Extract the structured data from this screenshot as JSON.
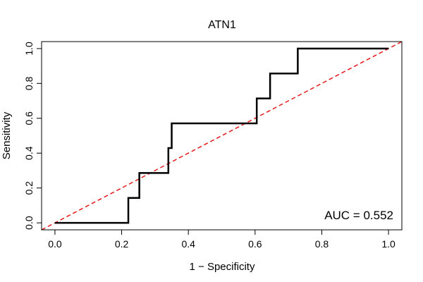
{
  "chart_data": {
    "type": "line",
    "title": "ATN1",
    "xlabel": "1 − Specificity",
    "ylabel": "Sensitivity",
    "xlim": [
      -0.04,
      1.04
    ],
    "ylim": [
      -0.04,
      1.04
    ],
    "x_ticks": [
      0.0,
      0.2,
      0.4,
      0.6,
      0.8,
      1.0
    ],
    "y_ticks": [
      0.0,
      0.2,
      0.4,
      0.6,
      0.8,
      1.0
    ],
    "x_tick_labels": [
      "0.0",
      "0.2",
      "0.4",
      "0.6",
      "0.8",
      "1.0"
    ],
    "y_tick_labels": [
      "0.0",
      "0.2",
      "0.4",
      "0.6",
      "0.8",
      "1.0"
    ],
    "grid": false,
    "annotation": "AUC = 0.552",
    "series": [
      {
        "color": "#000000",
        "x": [
          0.0,
          0.22,
          0.22,
          0.253,
          0.253,
          0.34,
          0.34,
          0.35,
          0.35,
          0.605,
          0.605,
          0.645,
          0.645,
          0.728,
          0.728,
          1.0
        ],
        "y": [
          0.0,
          0.0,
          0.143,
          0.143,
          0.286,
          0.286,
          0.429,
          0.429,
          0.571,
          0.571,
          0.714,
          0.714,
          0.857,
          0.857,
          1.0,
          1.0
        ]
      }
    ],
    "reference_line": {
      "color": "#e41a1c",
      "style": "dashed",
      "x": [
        -0.04,
        1.04
      ],
      "y": [
        -0.04,
        1.04
      ]
    }
  }
}
